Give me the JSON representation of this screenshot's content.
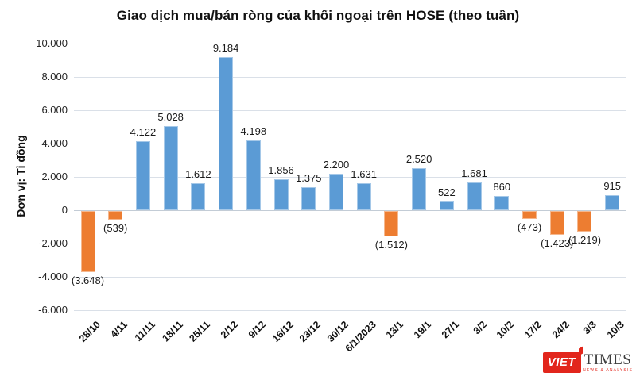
{
  "title": "Giao dịch mua/bán ròng của khối ngoại trên HOSE (theo tuần)",
  "y_axis_title": "Đơn vị: Tỉ đồng",
  "chart_data": {
    "type": "bar",
    "title": "Giao dịch mua/bán ròng của khối ngoại trên HOSE (theo tuần)",
    "xlabel": "",
    "ylabel": "Đơn vị: Tỉ đồng",
    "categories": [
      "28/10",
      "4/11",
      "11/11",
      "18/11",
      "25/11",
      "2/12",
      "9/12",
      "16/12",
      "23/12",
      "30/12",
      "6/1/2023",
      "13/1",
      "19/1",
      "27/1",
      "3/2",
      "10/2",
      "17/2",
      "24/2",
      "3/3",
      "10/3"
    ],
    "values": [
      -3648,
      -539,
      4122,
      5028,
      1612,
      9184,
      4198,
      1856,
      1375,
      2200,
      1631,
      -1512,
      2520,
      522,
      1681,
      860,
      -473,
      -1423,
      -1219,
      915
    ],
    "value_labels": [
      "(3.648)",
      "(539)",
      "4.122",
      "5.028",
      "1.612",
      "9.184",
      "4.198",
      "1.856",
      "1.375",
      "2.200",
      "1.631",
      "(1.512)",
      "2.520",
      "522",
      "1.681",
      "860",
      "(473)",
      "(1.423)",
      "(1.219)",
      "915"
    ],
    "ylim": [
      -6000,
      10000
    ],
    "ytick_values": [
      10000,
      8000,
      6000,
      4000,
      2000,
      0,
      -2000,
      -4000,
      -6000
    ],
    "ytick_labels": [
      "10.000",
      "8.000",
      "6.000",
      "4.000",
      "2.000",
      "0",
      "-2.000",
      "-4.000",
      "-6.000"
    ],
    "positive_color": "#5B9BD5",
    "negative_color": "#ED7D31",
    "grid": true,
    "legend": "none"
  },
  "logo": {
    "viet": "VIET",
    "times": "TIMES",
    "tagline": "NEWS & ANALYSIS",
    "red": "#E2261C"
  }
}
